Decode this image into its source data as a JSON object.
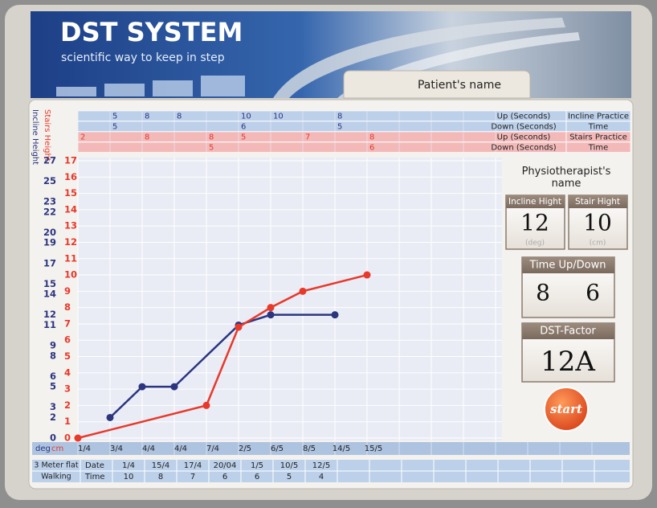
{
  "header": {
    "title": "DST SYSTEM",
    "subtitle": "scientific way to keep in step",
    "patient_name": "Patient's name"
  },
  "practice_table": {
    "rows": [
      {
        "values": [
          null,
          5,
          8,
          8,
          null,
          10,
          10,
          null,
          8,
          null
        ],
        "label": "Up (Seconds)",
        "group": "Incline Practice"
      },
      {
        "values": [
          null,
          5,
          null,
          null,
          null,
          6,
          null,
          null,
          5,
          null
        ],
        "label": "Down (Seconds)",
        "group": "Time"
      },
      {
        "values": [
          2,
          null,
          8,
          null,
          8,
          5,
          null,
          7,
          null,
          8
        ],
        "label": "Up (Seconds)",
        "group": "Stairs Practice"
      },
      {
        "values": [
          null,
          null,
          null,
          null,
          5,
          null,
          null,
          null,
          null,
          6
        ],
        "label": "Down (Seconds)",
        "group": "Time"
      }
    ]
  },
  "chart_data": {
    "type": "line",
    "ylabel": "deg",
    "y2label": "cm",
    "categories": [
      "1/4",
      "3/4",
      "4/4",
      "4/4",
      "7/4",
      "2/5",
      "6/5",
      "8/5",
      "14/5",
      "15/5"
    ],
    "ylim": [
      0,
      27
    ],
    "yticks": [
      0,
      2,
      3,
      5,
      6,
      8,
      9,
      11,
      12,
      14,
      15,
      17,
      19,
      20,
      22,
      23,
      25,
      27
    ],
    "y2lim": [
      0,
      17
    ],
    "y2ticks": [
      0,
      1,
      2,
      3,
      4,
      5,
      6,
      7,
      8,
      9,
      10,
      11,
      12,
      13,
      14,
      15,
      16,
      17
    ],
    "grid": true,
    "series": [
      {
        "name": "Incline Height",
        "color": "#2b3580",
        "x": [
          "3/4",
          "4/4",
          "4/4",
          "2/5",
          "6/5",
          "14/5"
        ],
        "values": [
          2,
          5,
          5,
          11,
          12,
          12
        ]
      },
      {
        "name": "Stairs Height",
        "color": "#e8392b",
        "axis": "y2",
        "x": [
          "1/4",
          "7/4",
          "2/5",
          "6/5",
          "8/5",
          "15/5"
        ],
        "values": [
          0,
          2,
          6.8,
          8,
          9,
          10
        ]
      }
    ]
  },
  "walking_table": {
    "title": [
      "3 Meter flat",
      "Walking"
    ],
    "row_labels": [
      "Date",
      "Time"
    ],
    "dates": [
      "1/4",
      "15/4",
      "17/4",
      "20/04",
      "1/5",
      "10/5",
      "12/5"
    ],
    "times": [
      10,
      8,
      7,
      6,
      6,
      5,
      4
    ]
  },
  "settings": {
    "physiotherapist": "Physiotherapist's name",
    "incline": {
      "label": "Incline Hight",
      "value": 12,
      "unit": "(deg)"
    },
    "stair": {
      "label": "Stair Hight",
      "value": 10,
      "unit": "(cm)"
    },
    "time": {
      "label": "Time Up/Down",
      "up": 8,
      "down": 6
    },
    "dst_factor": {
      "label": "DST-Factor",
      "value": "12A"
    },
    "start": "start"
  }
}
